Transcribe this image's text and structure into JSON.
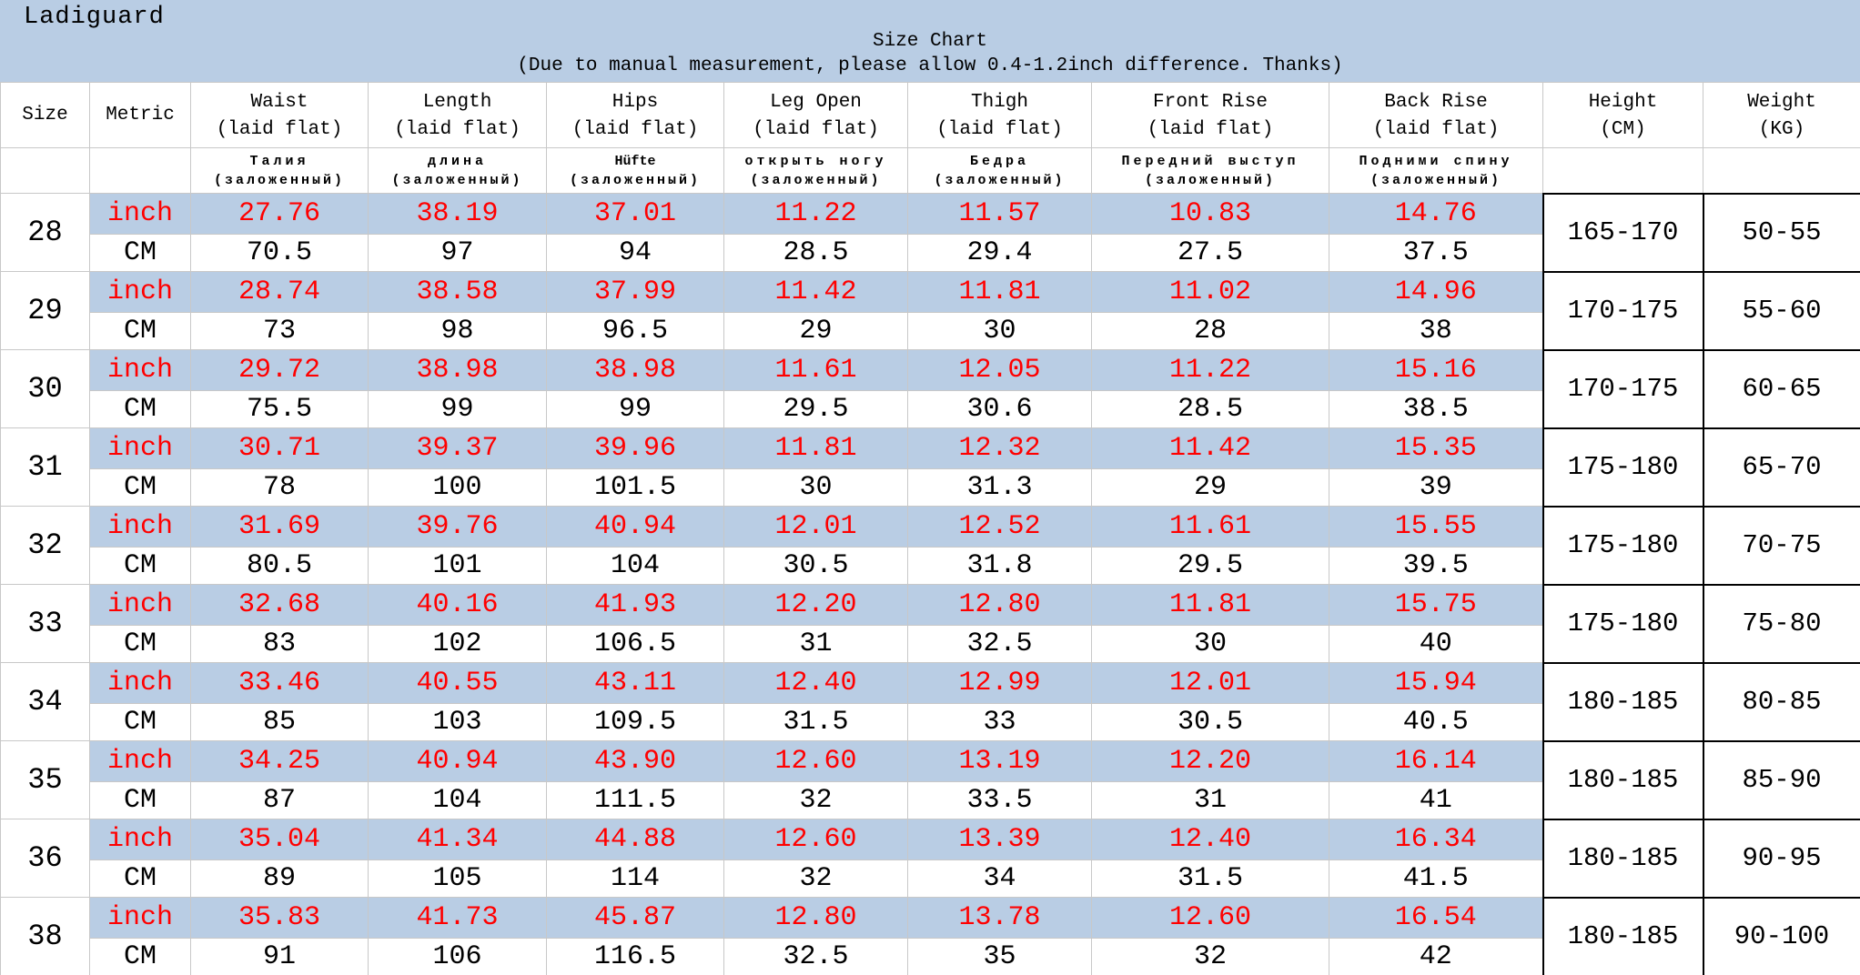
{
  "header": {
    "brand": "Ladiguard",
    "title": "Size Chart",
    "subtitle": "(Due to manual measurement, please allow 0.4-1.2inch difference. Thanks)"
  },
  "colors": {
    "band_blue": "#B9CDE4",
    "inch_text_red": "#FF0000",
    "grid_gray": "#c8c8c8",
    "merged_box_border": "#000000"
  },
  "metric_labels": {
    "inch": "inch",
    "cm": "CM"
  },
  "chart_data": {
    "type": "table",
    "title": "Size Chart",
    "subtitle": "(Due to manual measurement, please allow 0.4-1.2inch difference. Thanks)",
    "columns": [
      {
        "label": "Size",
        "sub": "",
        "ru": "",
        "ru_sub": ""
      },
      {
        "label": "Metric",
        "sub": "",
        "ru": "",
        "ru_sub": ""
      },
      {
        "label": "Waist",
        "sub": "(laid flat)",
        "ru": "Талия",
        "ru_sub": "(заложенный)"
      },
      {
        "label": "Length",
        "sub": "(laid flat)",
        "ru": "длина",
        "ru_sub": "(заложенный)"
      },
      {
        "label": "Hips",
        "sub": "(laid flat)",
        "ru": "Hüfte",
        "ru_sub": "(заложенный)"
      },
      {
        "label": "Leg Open",
        "sub": "(laid flat)",
        "ru": "открыть ногу",
        "ru_sub": "(заложенный)"
      },
      {
        "label": "Thigh",
        "sub": "(laid flat)",
        "ru": "Бедра",
        "ru_sub": "(заложенный)"
      },
      {
        "label": "Front Rise",
        "sub": "(laid flat)",
        "ru": "Передний выступ",
        "ru_sub": "(заложенный)"
      },
      {
        "label": "Back Rise",
        "sub": "(laid flat)",
        "ru": "Подними спину",
        "ru_sub": "(заложенный)"
      },
      {
        "label": "Height",
        "sub": "(CM)",
        "ru": "",
        "ru_sub": ""
      },
      {
        "label": "Weight",
        "sub": "(KG)",
        "ru": "",
        "ru_sub": ""
      }
    ],
    "measure_order": [
      "Waist",
      "Length",
      "Hips",
      "Leg Open",
      "Thigh",
      "Front Rise",
      "Back Rise"
    ],
    "rows": [
      {
        "size": "28",
        "inch": [
          "27.76",
          "38.19",
          "37.01",
          "11.22",
          "11.57",
          "10.83",
          "14.76"
        ],
        "cm": [
          "70.5",
          "97",
          "94",
          "28.5",
          "29.4",
          "27.5",
          "37.5"
        ],
        "height": "165-170",
        "weight": "50-55"
      },
      {
        "size": "29",
        "inch": [
          "28.74",
          "38.58",
          "37.99",
          "11.42",
          "11.81",
          "11.02",
          "14.96"
        ],
        "cm": [
          "73",
          "98",
          "96.5",
          "29",
          "30",
          "28",
          "38"
        ],
        "height": "170-175",
        "weight": "55-60"
      },
      {
        "size": "30",
        "inch": [
          "29.72",
          "38.98",
          "38.98",
          "11.61",
          "12.05",
          "11.22",
          "15.16"
        ],
        "cm": [
          "75.5",
          "99",
          "99",
          "29.5",
          "30.6",
          "28.5",
          "38.5"
        ],
        "height": "170-175",
        "weight": "60-65"
      },
      {
        "size": "31",
        "inch": [
          "30.71",
          "39.37",
          "39.96",
          "11.81",
          "12.32",
          "11.42",
          "15.35"
        ],
        "cm": [
          "78",
          "100",
          "101.5",
          "30",
          "31.3",
          "29",
          "39"
        ],
        "height": "175-180",
        "weight": "65-70"
      },
      {
        "size": "32",
        "inch": [
          "31.69",
          "39.76",
          "40.94",
          "12.01",
          "12.52",
          "11.61",
          "15.55"
        ],
        "cm": [
          "80.5",
          "101",
          "104",
          "30.5",
          "31.8",
          "29.5",
          "39.5"
        ],
        "height": "175-180",
        "weight": "70-75"
      },
      {
        "size": "33",
        "inch": [
          "32.68",
          "40.16",
          "41.93",
          "12.20",
          "12.80",
          "11.81",
          "15.75"
        ],
        "cm": [
          "83",
          "102",
          "106.5",
          "31",
          "32.5",
          "30",
          "40"
        ],
        "height": "175-180",
        "weight": "75-80"
      },
      {
        "size": "34",
        "inch": [
          "33.46",
          "40.55",
          "43.11",
          "12.40",
          "12.99",
          "12.01",
          "15.94"
        ],
        "cm": [
          "85",
          "103",
          "109.5",
          "31.5",
          "33",
          "30.5",
          "40.5"
        ],
        "height": "180-185",
        "weight": "80-85"
      },
      {
        "size": "35",
        "inch": [
          "34.25",
          "40.94",
          "43.90",
          "12.60",
          "13.19",
          "12.20",
          "16.14"
        ],
        "cm": [
          "87",
          "104",
          "111.5",
          "32",
          "33.5",
          "31",
          "41"
        ],
        "height": "180-185",
        "weight": "85-90"
      },
      {
        "size": "36",
        "inch": [
          "35.04",
          "41.34",
          "44.88",
          "12.60",
          "13.39",
          "12.40",
          "16.34"
        ],
        "cm": [
          "89",
          "105",
          "114",
          "32",
          "34",
          "31.5",
          "41.5"
        ],
        "height": "180-185",
        "weight": "90-95"
      },
      {
        "size": "38",
        "inch": [
          "35.83",
          "41.73",
          "45.87",
          "12.80",
          "13.78",
          "12.60",
          "16.54"
        ],
        "cm": [
          "91",
          "106",
          "116.5",
          "32.5",
          "35",
          "32",
          "42"
        ],
        "height": "180-185",
        "weight": "90-100"
      }
    ]
  }
}
